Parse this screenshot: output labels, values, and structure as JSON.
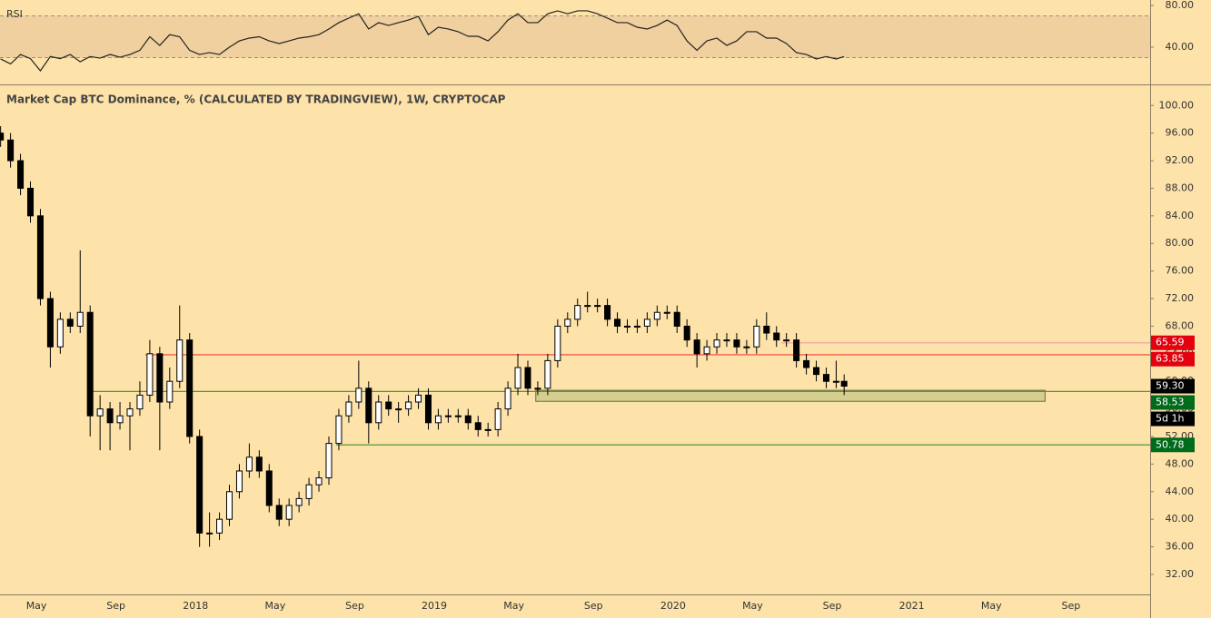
{
  "chart_data": [
    {
      "type": "candlestick",
      "title": "Market Cap BTC Dominance, % (CALCULATED BY TRADINGVIEW), 1W, CRYPTOCAP",
      "x": [
        2.2,
        2.7,
        3.2,
        3.7,
        4.2,
        4.7,
        5.2,
        5.7,
        6.2,
        6.7,
        7.2,
        7.7,
        8.2,
        8.7,
        9.2,
        9.7,
        10.2,
        10.7,
        11.2,
        11.7,
        12.2,
        12.7,
        13.2,
        13.7,
        14.2,
        14.7,
        15.2,
        15.7,
        16.2,
        16.7,
        17.2,
        17.7,
        18.2,
        18.7,
        19.2,
        19.7,
        20.2,
        20.7,
        21.2,
        21.7,
        22.2,
        22.7,
        23.2,
        23.7,
        24.2,
        24.7,
        25.2,
        25.7,
        26.2,
        26.7,
        27.2,
        27.7,
        28.2,
        28.7,
        29.2,
        29.7,
        30.2,
        30.7,
        31.2,
        31.7,
        32.2,
        32.7,
        33.2,
        33.7,
        34.2,
        34.7,
        35.2,
        35.7,
        36.2,
        36.7,
        37.2,
        37.7,
        38.2,
        38.7,
        39.2,
        39.7,
        40.2,
        40.7,
        41.2,
        41.7,
        42.2,
        42.7,
        43.2,
        43.7,
        44.2,
        44.6
      ],
      "ohlc": [
        [
          96,
          97,
          94,
          95
        ],
        [
          95,
          96,
          91,
          92
        ],
        [
          92,
          93,
          87,
          88
        ],
        [
          88,
          89,
          83,
          84
        ],
        [
          84,
          85,
          71,
          72
        ],
        [
          72,
          73,
          62,
          65
        ],
        [
          65,
          70,
          64,
          69
        ],
        [
          69,
          70,
          67,
          68
        ],
        [
          68,
          79,
          67,
          70
        ],
        [
          70,
          71,
          52,
          55
        ],
        [
          55,
          58,
          50,
          56
        ],
        [
          56,
          57,
          50,
          54
        ],
        [
          54,
          57,
          53,
          55
        ],
        [
          55,
          57,
          50,
          56
        ],
        [
          56,
          60,
          55,
          58
        ],
        [
          58,
          66,
          57,
          64
        ],
        [
          64,
          65,
          50,
          57
        ],
        [
          57,
          62,
          56,
          60
        ],
        [
          60,
          71,
          59,
          66
        ],
        [
          66,
          67,
          51,
          52
        ],
        [
          52,
          53,
          36,
          38
        ],
        [
          38,
          41,
          36,
          38
        ],
        [
          38,
          41,
          37,
          40
        ],
        [
          40,
          45,
          39,
          44
        ],
        [
          44,
          48,
          43,
          47
        ],
        [
          47,
          51,
          46,
          49
        ],
        [
          49,
          50,
          46,
          47
        ],
        [
          47,
          48,
          41,
          42
        ],
        [
          42,
          43,
          39,
          40
        ],
        [
          40,
          43,
          39,
          42
        ],
        [
          42,
          44,
          41,
          43
        ],
        [
          43,
          46,
          42,
          45
        ],
        [
          45,
          47,
          44,
          46
        ],
        [
          46,
          52,
          45,
          51
        ],
        [
          51,
          56,
          50,
          55
        ],
        [
          55,
          58,
          54,
          57
        ],
        [
          57,
          63,
          56,
          59
        ],
        [
          59,
          60,
          51,
          54
        ],
        [
          54,
          58,
          53,
          57
        ],
        [
          57,
          58,
          55,
          56
        ],
        [
          56,
          57,
          54,
          56
        ],
        [
          56,
          58,
          55,
          57
        ],
        [
          57,
          59,
          56,
          58
        ],
        [
          58,
          59,
          53,
          54
        ],
        [
          54,
          56,
          53,
          55
        ],
        [
          55,
          56,
          54,
          55
        ],
        [
          55,
          56,
          54,
          55
        ],
        [
          55,
          56,
          53,
          54
        ],
        [
          54,
          55,
          52,
          53
        ],
        [
          53,
          54,
          52,
          53
        ],
        [
          53,
          57,
          52,
          56
        ],
        [
          56,
          60,
          55,
          59
        ],
        [
          59,
          64,
          58,
          62
        ],
        [
          62,
          63,
          58,
          59
        ],
        [
          59,
          60,
          58,
          59
        ],
        [
          59,
          64,
          58,
          63
        ],
        [
          63,
          69,
          62,
          68
        ],
        [
          68,
          70,
          67,
          69
        ],
        [
          69,
          72,
          68,
          71
        ],
        [
          71,
          73,
          70,
          71
        ],
        [
          71,
          72,
          70,
          71
        ],
        [
          71,
          72,
          68,
          69
        ],
        [
          69,
          70,
          67,
          68
        ],
        [
          68,
          69,
          67,
          68
        ],
        [
          68,
          69,
          67,
          68
        ],
        [
          68,
          70,
          67,
          69
        ],
        [
          69,
          71,
          68,
          70
        ],
        [
          70,
          71,
          69,
          70
        ],
        [
          70,
          71,
          67,
          68
        ],
        [
          68,
          69,
          65,
          66
        ],
        [
          66,
          67,
          62,
          64
        ],
        [
          64,
          66,
          63,
          65
        ],
        [
          65,
          67,
          64,
          66
        ],
        [
          66,
          67,
          65,
          66
        ],
        [
          66,
          67,
          64,
          65
        ],
        [
          65,
          66,
          64,
          65
        ],
        [
          65,
          69,
          64,
          68
        ],
        [
          68,
          70,
          66,
          67
        ],
        [
          67,
          68,
          65,
          66
        ],
        [
          66,
          67,
          65,
          66
        ],
        [
          66,
          67,
          62,
          63
        ],
        [
          63,
          64,
          61,
          62
        ],
        [
          62,
          63,
          60,
          61
        ],
        [
          61,
          62,
          59,
          60
        ],
        [
          60,
          63,
          59,
          60
        ],
        [
          60,
          61,
          58,
          59.3
        ]
      ],
      "up_color": "#ffffff",
      "down_color": "#000000",
      "xlim": [
        2.17,
        59.98
      ],
      "ylim": [
        29.1,
        102.8
      ],
      "xticks": [
        {
          "value": 4,
          "label": "May"
        },
        {
          "value": 8,
          "label": "Sep"
        },
        {
          "value": 12,
          "label": "2018"
        },
        {
          "value": 16,
          "label": "May"
        },
        {
          "value": 20,
          "label": "Sep"
        },
        {
          "value": 24,
          "label": "2019"
        },
        {
          "value": 28,
          "label": "May"
        },
        {
          "value": 32,
          "label": "Sep"
        },
        {
          "value": 36,
          "label": "2020"
        },
        {
          "value": 40,
          "label": "May"
        },
        {
          "value": 44,
          "label": "Sep"
        },
        {
          "value": 48,
          "label": "2021"
        },
        {
          "value": 52,
          "label": "May"
        },
        {
          "value": 56,
          "label": "Sep"
        }
      ],
      "yticks": [
        {
          "value": 32,
          "label": "32.00"
        },
        {
          "value": 36,
          "label": "36.00"
        },
        {
          "value": 40,
          "label": "40.00"
        },
        {
          "value": 44,
          "label": "44.00"
        },
        {
          "value": 48,
          "label": "48.00"
        },
        {
          "value": 52,
          "label": "52.00"
        },
        {
          "value": 56,
          "label": "56.00"
        },
        {
          "value": 60,
          "label": "60.00"
        },
        {
          "value": 64,
          "label": "64.00"
        },
        {
          "value": 68,
          "label": "68.00"
        },
        {
          "value": 72,
          "label": "72.00"
        },
        {
          "value": 76,
          "label": "76.00"
        },
        {
          "value": 80,
          "label": "80.00"
        },
        {
          "value": 84,
          "label": "84.00"
        },
        {
          "value": 88,
          "label": "88.00"
        },
        {
          "value": 92,
          "label": "92.00"
        },
        {
          "value": 96,
          "label": "96.00"
        },
        {
          "value": 100,
          "label": "100.00"
        }
      ],
      "levels": [
        {
          "value": 65.59,
          "label": "65.59",
          "color": "#f4a3a3",
          "label_color": "#e3000f",
          "from": 41.45
        },
        {
          "value": 63.85,
          "label": "63.85",
          "color": "#f04040",
          "label_color": "#e3000f",
          "from": 9.48
        },
        {
          "value": 58.53,
          "label": "58.53",
          "color": "#4f9a3a",
          "label_color": "#006b1b",
          "from": 6.74
        },
        {
          "value": 50.78,
          "label": "50.78",
          "color": "#4f9a3a",
          "label_color": "#006b1b",
          "from": 19.07
        }
      ],
      "last_price": {
        "value": 59.3,
        "label": "59.30",
        "countdown": "5d 1h"
      },
      "zone": {
        "x": [
          29.1,
          54.7
        ],
        "y": [
          57.1,
          58.7
        ],
        "color": "#d4cf8f"
      }
    },
    {
      "type": "line",
      "title": "RSI",
      "x": [
        2.2,
        2.7,
        3.2,
        3.7,
        4.2,
        4.7,
        5.2,
        5.7,
        6.2,
        6.7,
        7.2,
        7.7,
        8.2,
        8.7,
        9.2,
        9.7,
        10.2,
        10.7,
        11.2,
        11.7,
        12.2,
        12.7,
        13.2,
        13.7,
        14.2,
        14.7,
        15.2,
        15.7,
        16.2,
        16.7,
        17.2,
        17.7,
        18.2,
        18.7,
        19.2,
        19.7,
        20.2,
        20.7,
        21.2,
        21.7,
        22.2,
        22.7,
        23.2,
        23.7,
        24.2,
        24.7,
        25.2,
        25.7,
        26.2,
        26.7,
        27.2,
        27.7,
        28.2,
        28.7,
        29.2,
        29.7,
        30.2,
        30.7,
        31.2,
        31.7,
        32.2,
        32.7,
        33.2,
        33.7,
        34.2,
        34.7,
        35.2,
        35.7,
        36.2,
        36.7,
        37.2,
        37.7,
        38.2,
        38.7,
        39.2,
        39.7,
        40.2,
        40.7,
        41.2,
        41.7,
        42.2,
        42.7,
        43.2,
        43.7,
        44.2,
        44.6
      ],
      "values": [
        28.7,
        24,
        33,
        29,
        17.4,
        31,
        29,
        33,
        26,
        31,
        29.5,
        33,
        30.4,
        33,
        37,
        50,
        41.7,
        52,
        50,
        37,
        33,
        34.8,
        33,
        40,
        46,
        48.7,
        50,
        46,
        43.5,
        46,
        48.7,
        50,
        52,
        57.4,
        63.5,
        67.8,
        72,
        57.4,
        63.5,
        60.8,
        63.5,
        66,
        69.5,
        52,
        59.1,
        57.4,
        54.8,
        50.4,
        50.4,
        46,
        54.8,
        66,
        72,
        63.5,
        63.5,
        72,
        74.8,
        72,
        74.8,
        74.8,
        72,
        67.8,
        63.5,
        63.5,
        59.1,
        57.4,
        60.8,
        66,
        60.8,
        46,
        37,
        46,
        48.7,
        41.7,
        46,
        54.8,
        54.8,
        48.7,
        48.7,
        43.5,
        34.8,
        33,
        28.7,
        31,
        28.7,
        31
      ],
      "color": "#222222",
      "band": [
        30,
        70
      ],
      "band_color": "#f0d09e",
      "xlim": [
        2.17,
        59.98
      ],
      "ylim": [
        5.2,
        85.2
      ],
      "yticks": [
        {
          "value": 40,
          "label": "40.00"
        },
        {
          "value": 80,
          "label": "80.00"
        }
      ]
    }
  ]
}
